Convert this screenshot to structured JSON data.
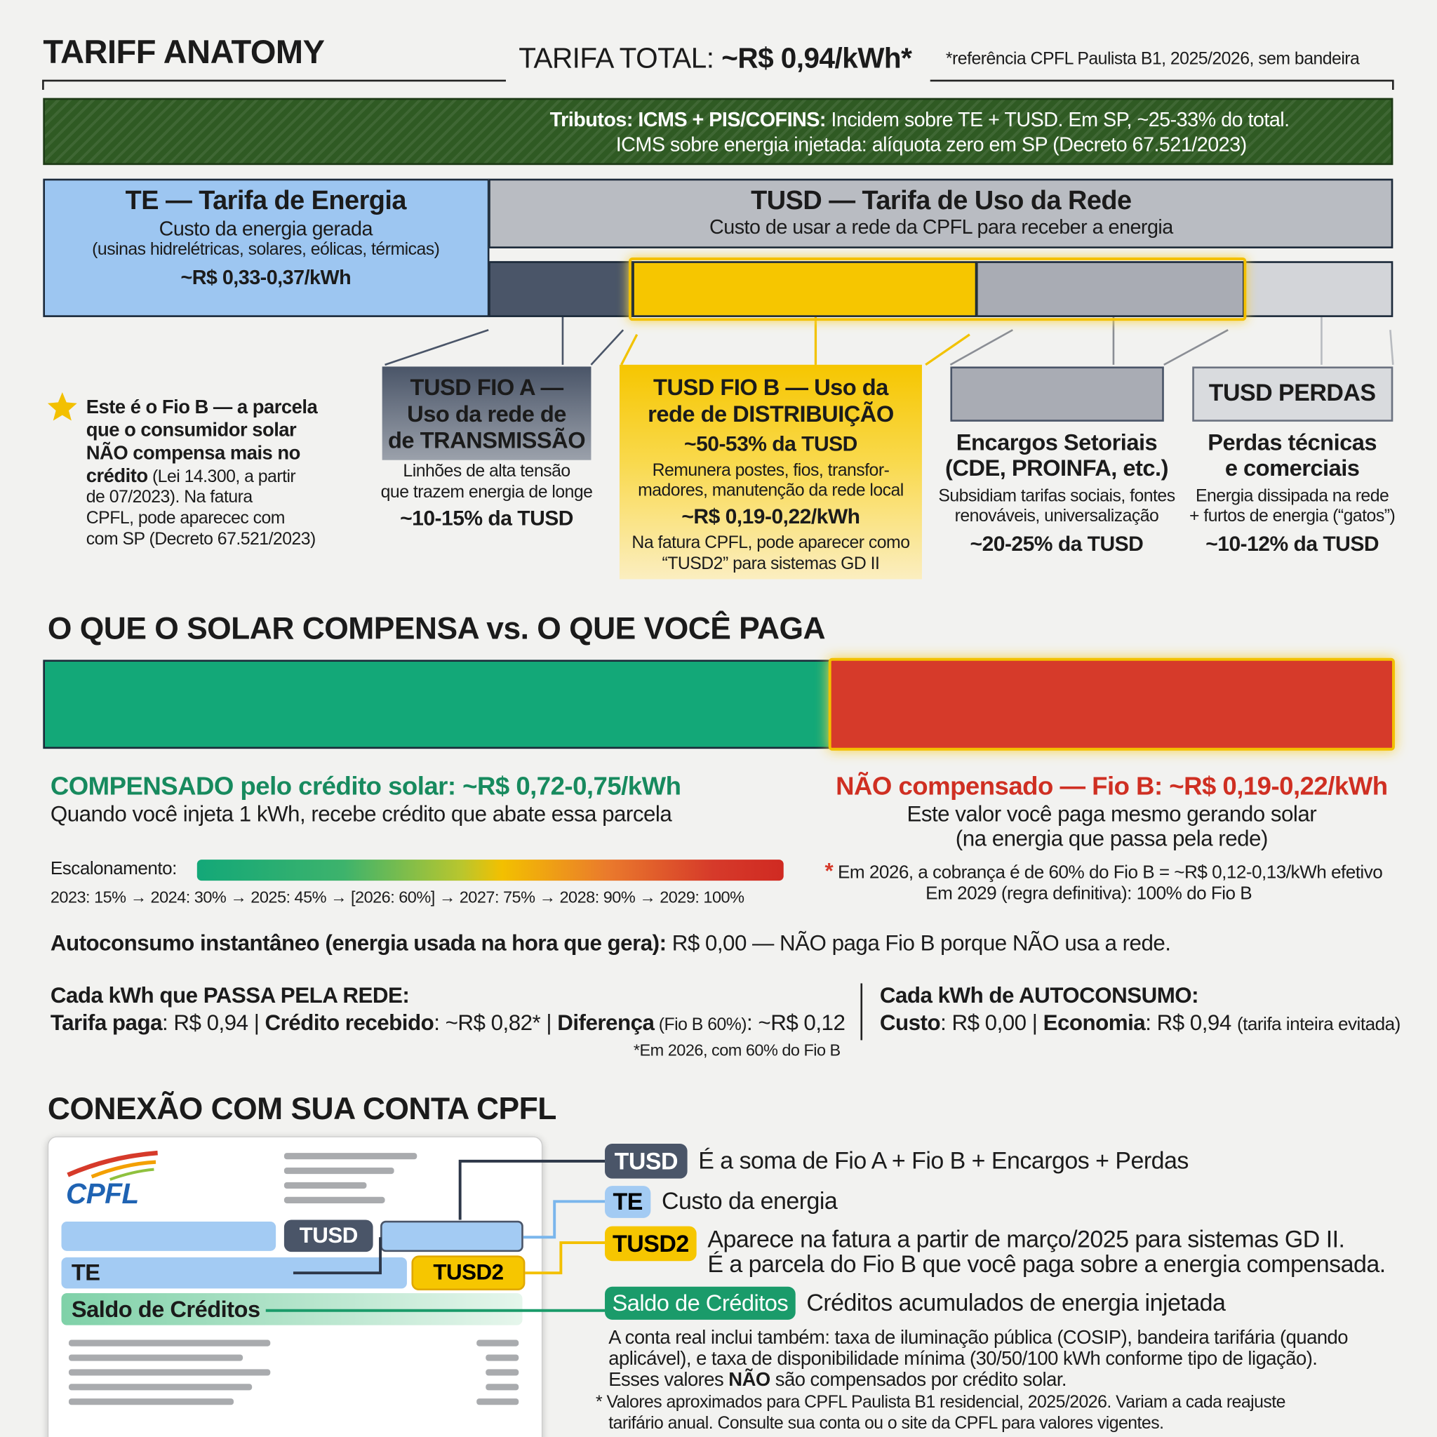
{
  "header": {
    "title": "TARIFF ANATOMY",
    "total_label": "TARIFA TOTAL: ",
    "total_value": "~R$ 0,94/kWh*",
    "reference": "*referência CPFL Paulista B1, 2025/2026, sem bandeira"
  },
  "taxes": {
    "label": "Tributos: ICMS + PIS/COFINS:",
    "line1": " Incidem sobre TE + TUSD. Em SP, ~25-33% do total.",
    "line2": "ICMS sobre energia injetada: alíquota zero em SP (Decreto 67.521/2023)"
  },
  "te": {
    "title": "TE — Tarifa de Energia",
    "lines": [
      "Custo da energia gerada",
      "(usinas hidrelétricas, solares, eólicas, térmicas)"
    ],
    "value": "~R$ 0,33-0,37/kWh"
  },
  "tusd": {
    "title": "TUSD — Tarifa de Uso da Rede",
    "subtitle": "Custo de usar a rede da CPFL para receber a energia"
  },
  "fio_b_note": {
    "bold": [
      "Este é o Fio B — a parcela",
      "que o consumidor solar",
      "NÃO compensa mais no",
      "crédito"
    ],
    "normal": [
      " (Lei 14.300, a partir",
      "de 07/2023). Na fatura",
      "CPFL, pode aparecec com",
      "com SP (Decreto 67.521/2023)"
    ]
  },
  "components": [
    {
      "title": [
        "TUSD FIO A —",
        "Uso da rede de",
        "de TRANSMISSÃO"
      ],
      "description": [
        "Linhões de alta tensão",
        "que trazem energia de longe"
      ],
      "share": "~10-15% da TUSD"
    },
    {
      "title": [
        "TUSD FIO B — Uso da",
        "rede de DISTRIBUIÇÃO"
      ],
      "share": "~50-53% da TUSD",
      "description": [
        "Remunera postes, fios, transfor-",
        "madores, manutenção da rede local"
      ],
      "value": "~R$ 0,19-0,22/kWh",
      "note": [
        "Na fatura CPFL, pode aparecer como",
        "“TUSD2” para sistemas GD II"
      ]
    },
    {
      "title": [
        "Encargos Setoriais",
        "(CDE, PROINFA, etc.)"
      ],
      "description": [
        "Subsidiam tarifas sociais, fontes",
        "renováveis, universalização"
      ],
      "share": "~20-25% da TUSD"
    },
    {
      "label": "TUSD PERDAS",
      "title": [
        "Perdas técnicas",
        "e comerciais"
      ],
      "description": [
        "Energia dissipada na rede",
        "+ furtos de energia (“gatos”)"
      ],
      "share": "~10-12% da TUSD"
    }
  ],
  "comparison": {
    "heading": "O QUE O SOLAR COMPENSA vs. O QUE VOCÊ PAGA",
    "compensated": {
      "title": "COMPENSADO pelo crédito solar: ~R$ 0,72-0,75/kWh",
      "text": "Quando você injeta 1 kWh, recebe crédito que abate essa parcela"
    },
    "not_compensated": {
      "title": "NÃO compensado — Fio B: ~R$ 0,19-0,22/kWh",
      "text": [
        "Este valor você paga mesmo gerando solar",
        "(na energia que passa pela rede)"
      ]
    },
    "schedule_label": "Escalonamento:",
    "schedule": "2023: 15% → 2024: 30% → 2025: 45% → [2026: 60%] → 2027: 75% → 2028: 90% → 2029: 100%",
    "note_mark": "*",
    "note": [
      " Em 2026, a cobrança é de 60% do Fio B = ~R$ 0,12-0,13/kWh efetivo",
      "Em 2029 (regra definitiva): 100% do Fio B"
    ]
  },
  "self_consumption": [
    "Autoconsumo instantâneo (energia usada na hora que gera):",
    " R$ 0,00 — NÃO paga Fio B porque NÃO usa a rede."
  ],
  "per_kwh": {
    "grid": {
      "title": "Cada kWh que PASSA PELA REDE:",
      "line": [
        "Tarifa paga",
        ": R$ 0,94 | ",
        "Crédito recebido",
        ": ~R$ 0,82* | ",
        "Diferença",
        " (Fio B 60%)",
        ": ~R$ 0,12"
      ],
      "footnote": "*Em 2026, com 60% do Fio B"
    },
    "self": {
      "title": "Cada kWh de AUTOCONSUMO:",
      "line": [
        "Custo",
        ": R$ 0,00 | ",
        "Economia",
        ": R$ 0,94 ",
        "(tarifa inteira evitada)"
      ]
    }
  },
  "bill": {
    "heading": "CONEXÃO COM SUA CONTA CPFL",
    "logo": "CPFL",
    "tusd": "TUSD",
    "te": "TE",
    "tusd2": "TUSD2",
    "credits": "Saldo de Créditos"
  },
  "legend": [
    {
      "tag": "TUSD",
      "text": [
        "É a soma de Fio A + Fio B + Encargos + Perdas"
      ]
    },
    {
      "tag": "TE",
      "text": [
        "Custo da energia"
      ]
    },
    {
      "tag": "TUSD2",
      "text": [
        "Aparece na fatura a partir de março/2025 para sistemas GD II.",
        "É a parcela do Fio B que você paga sobre a energia compensada."
      ]
    },
    {
      "tag": "Saldo de Créditos",
      "text": [
        "Créditos acumulados de energia injetada"
      ]
    }
  ],
  "notes": {
    "lines": [
      "A conta real inclui também: taxa de iluminação pública (COSIP), bandeira tarifária (quando",
      "aplicável), e taxa de disponibilidade mínima (30/50/100 kWh conforme tipo de ligação)."
    ],
    "last": [
      "Esses valores ",
      "NÃO",
      " são compensados por crédito solar."
    ],
    "footnote": [
      "* Valores aproximados para CPFL Paulista B1 residencial, 2025/2026. Variam a cada reajuste",
      "tarifário anual. Consulte sua conta ou o site da CPFL para valores vigentes."
    ]
  }
}
